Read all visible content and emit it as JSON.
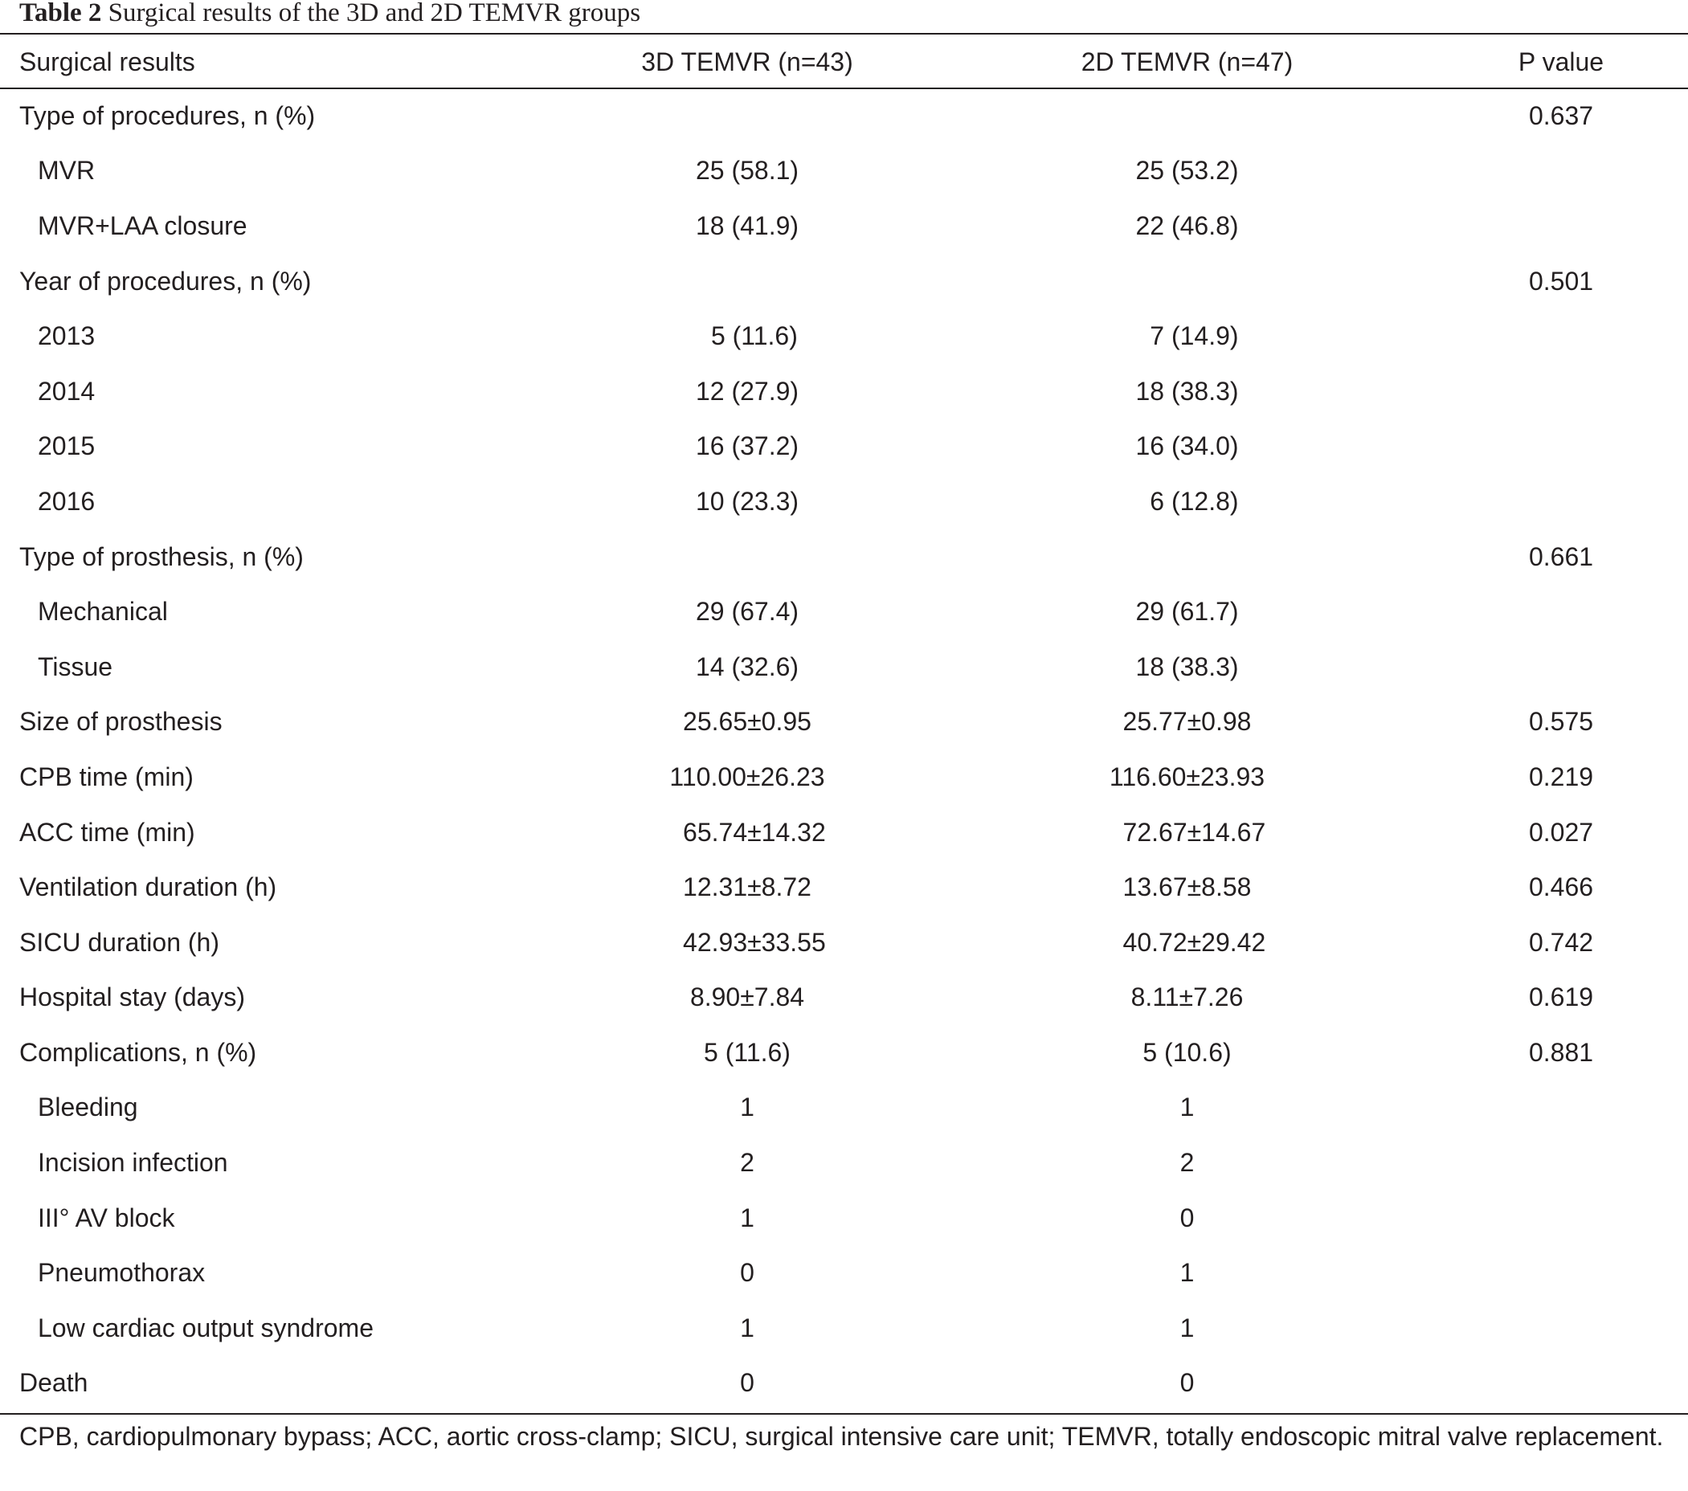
{
  "caption": {
    "label": "Table 2",
    "text": "Surgical results of the 3D and 2D TEMVR groups"
  },
  "table": {
    "headers": [
      "Surgical results",
      "3D TEMVR (n=43)",
      "2D TEMVR (n=47)",
      "P value"
    ],
    "rows": [
      {
        "label": "Type of procedures, n (%)",
        "indent": false,
        "d3": "",
        "d2": "",
        "p": "0.637"
      },
      {
        "label": "MVR",
        "indent": true,
        "d3": "25 (58.1)",
        "d2": "25 (53.2)",
        "p": ""
      },
      {
        "label": "MVR+LAA closure",
        "indent": true,
        "d3": "18 (41.9)",
        "d2": "22 (46.8)",
        "p": ""
      },
      {
        "label": "Year of procedures, n (%)",
        "indent": false,
        "d3": "",
        "d2": "",
        "p": "0.501"
      },
      {
        "label": "2013",
        "indent": true,
        "d3": "  5 (11.6)",
        "d2": "  7 (14.9)",
        "p": ""
      },
      {
        "label": "2014",
        "indent": true,
        "d3": "12 (27.9)",
        "d2": "18 (38.3)",
        "p": ""
      },
      {
        "label": "2015",
        "indent": true,
        "d3": "16 (37.2)",
        "d2": "16 (34.0)",
        "p": ""
      },
      {
        "label": "2016",
        "indent": true,
        "d3": "10 (23.3)",
        "d2": "  6 (12.8)",
        "p": ""
      },
      {
        "label": "Type of prosthesis, n (%)",
        "indent": false,
        "d3": "",
        "d2": "",
        "p": "0.661"
      },
      {
        "label": "Mechanical",
        "indent": true,
        "d3": "29 (67.4)",
        "d2": "29 (61.7)",
        "p": ""
      },
      {
        "label": "Tissue",
        "indent": true,
        "d3": "14 (32.6)",
        "d2": "18 (38.3)",
        "p": ""
      },
      {
        "label": "Size of prosthesis",
        "indent": false,
        "d3": "25.65±0.95",
        "d2": "25.77±0.98",
        "p": "0.575"
      },
      {
        "label": "CPB time (min)",
        "indent": false,
        "d3": "110.00±26.23",
        "d2": "116.60±23.93",
        "p": "0.219"
      },
      {
        "label": "ACC time (min)",
        "indent": false,
        "d3": "  65.74±14.32",
        "d2": "  72.67±14.67",
        "p": "0.027"
      },
      {
        "label": "Ventilation duration (h)",
        "indent": false,
        "d3": "12.31±8.72",
        "d2": "13.67±8.58",
        "p": "0.466"
      },
      {
        "label": "SICU duration (h)",
        "indent": false,
        "d3": "  42.93±33.55",
        "d2": "  40.72±29.42",
        "p": "0.742"
      },
      {
        "label": "Hospital stay (days)",
        "indent": false,
        "d3": "8.90±7.84",
        "d2": "8.11±7.26",
        "p": "0.619"
      },
      {
        "label": "Complications, n (%)",
        "indent": false,
        "d3": "5 (11.6)",
        "d2": "5 (10.6)",
        "p": "0.881"
      },
      {
        "label": "Bleeding",
        "indent": true,
        "d3": "1",
        "d2": "1",
        "p": ""
      },
      {
        "label": "Incision infection",
        "indent": true,
        "d3": "2",
        "d2": "2",
        "p": ""
      },
      {
        "label": "III° AV block",
        "indent": true,
        "d3": "1",
        "d2": "0",
        "p": ""
      },
      {
        "label": "Pneumothorax",
        "indent": true,
        "d3": "0",
        "d2": "1",
        "p": ""
      },
      {
        "label": "Low cardiac output syndrome",
        "indent": true,
        "d3": "1",
        "d2": "1",
        "p": ""
      },
      {
        "label": "Death",
        "indent": false,
        "d3": "0",
        "d2": "0",
        "p": ""
      }
    ]
  },
  "footnote": "CPB, cardiopulmonary bypass; ACC, aortic cross-clamp; SICU, surgical intensive care unit; TEMVR, totally endoscopic mitral valve replacement."
}
